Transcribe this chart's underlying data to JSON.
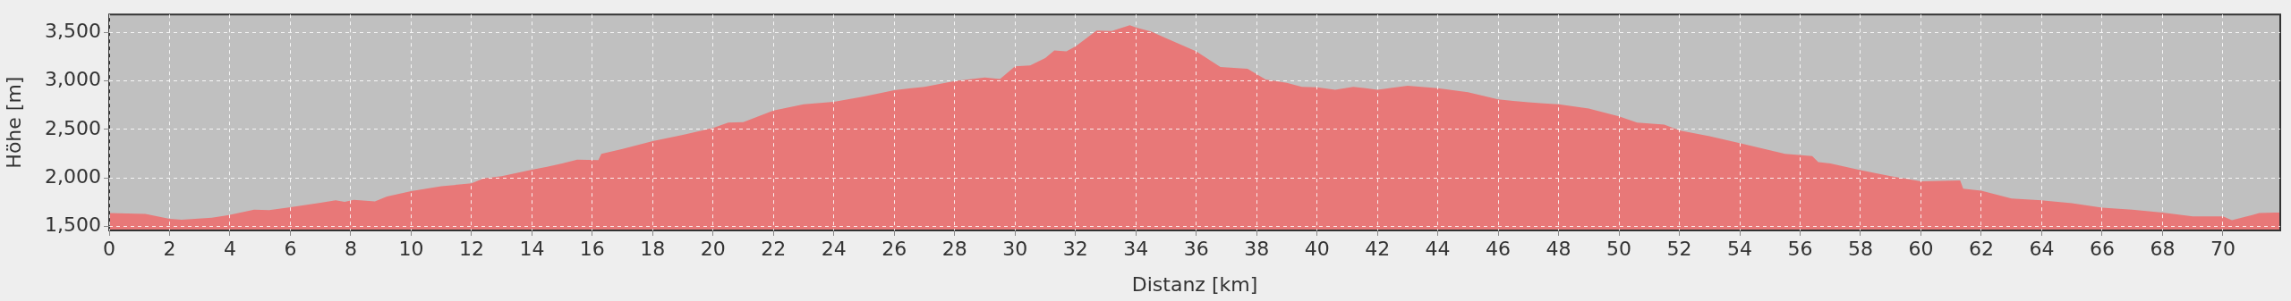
{
  "chart_data": {
    "type": "area",
    "xlabel": "Distanz [km]",
    "ylabel": "Höhe [m]",
    "x": [
      0,
      1.2,
      2,
      2.4,
      3.4,
      4,
      4.8,
      5.3,
      6,
      7,
      7.5,
      7.8,
      8.1,
      8.8,
      9.2,
      10,
      11,
      12,
      12.4,
      13,
      14,
      14.5,
      15,
      15.5,
      16.2,
      16.3,
      17,
      18,
      19,
      20,
      20.5,
      21,
      22,
      23,
      24,
      25,
      26,
      27,
      28,
      29,
      29.5,
      30,
      30.5,
      31,
      31.3,
      31.7,
      32,
      32.7,
      33.2,
      33.8,
      34,
      34.5,
      35,
      36,
      36.8,
      37.7,
      38.3,
      39,
      39.5,
      40,
      40.6,
      41.2,
      42,
      43,
      44,
      45,
      46,
      46.5,
      47,
      47.5,
      48,
      49,
      50,
      50.6,
      51.5,
      52,
      53,
      54,
      55,
      55.5,
      56.4,
      56.6,
      57,
      58,
      59,
      60,
      61.3,
      61.4,
      62,
      63,
      64,
      65,
      66,
      67,
      68,
      69,
      70,
      70.3,
      71,
      71.2,
      71.9
    ],
    "series": [
      {
        "color": "#e87878",
        "values": [
          1640,
          1630,
          1580,
          1570,
          1590,
          1620,
          1675,
          1670,
          1700,
          1745,
          1770,
          1755,
          1775,
          1760,
          1810,
          1865,
          1915,
          1945,
          1995,
          2020,
          2085,
          2115,
          2150,
          2190,
          2185,
          2250,
          2300,
          2380,
          2445,
          2515,
          2570,
          2575,
          2695,
          2760,
          2785,
          2840,
          2905,
          2940,
          3000,
          3035,
          3020,
          3150,
          3160,
          3235,
          3315,
          3305,
          3355,
          3520,
          3515,
          3575,
          3550,
          3510,
          3440,
          3305,
          3145,
          3125,
          3015,
          2980,
          2940,
          2935,
          2910,
          2940,
          2910,
          2950,
          2925,
          2885,
          2810,
          2795,
          2780,
          2770,
          2760,
          2715,
          2635,
          2570,
          2550,
          2490,
          2430,
          2360,
          2285,
          2250,
          2225,
          2165,
          2150,
          2080,
          2020,
          1965,
          1975,
          1890,
          1870,
          1790,
          1770,
          1740,
          1695,
          1675,
          1645,
          1605,
          1605,
          1565,
          1620,
          1640,
          1645
        ]
      }
    ],
    "xlim": [
      0,
      71.9
    ],
    "ylim": [
      1460,
      3685
    ],
    "xticks": [
      0,
      2,
      4,
      6,
      8,
      10,
      12,
      14,
      16,
      18,
      20,
      22,
      24,
      26,
      28,
      30,
      32,
      34,
      36,
      38,
      40,
      42,
      44,
      46,
      48,
      50,
      52,
      54,
      56,
      58,
      60,
      62,
      64,
      66,
      68,
      70
    ],
    "yticks": [
      {
        "value": 1500,
        "label": "1,500"
      },
      {
        "value": 2000,
        "label": "2,000"
      },
      {
        "value": 2500,
        "label": "2,500"
      },
      {
        "value": 3000,
        "label": "3,000"
      },
      {
        "value": 3500,
        "label": "3,500"
      }
    ],
    "grid": true,
    "legend": false
  }
}
